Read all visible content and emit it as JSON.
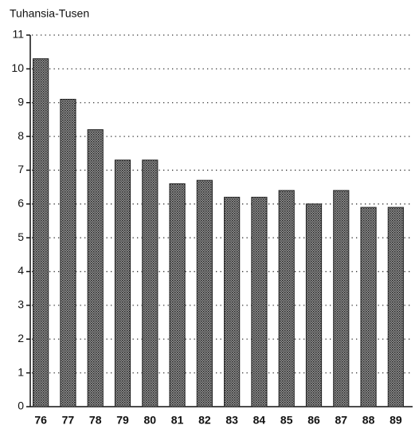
{
  "chart_data": {
    "type": "bar",
    "y_label": "Tuhansia-Tusen",
    "categories": [
      "76",
      "77",
      "78",
      "79",
      "80",
      "81",
      "82",
      "83",
      "84",
      "85",
      "86",
      "87",
      "88",
      "89"
    ],
    "values": [
      10.3,
      9.1,
      8.2,
      7.3,
      7.3,
      6.6,
      6.7,
      6.2,
      6.2,
      6.4,
      6.0,
      6.4,
      5.9,
      5.9
    ],
    "color": "#555555",
    "ylim": [
      0,
      11
    ],
    "yticks": [
      0,
      1,
      2,
      3,
      4,
      5,
      6,
      7,
      8,
      9,
      10,
      11
    ],
    "grid": true
  }
}
